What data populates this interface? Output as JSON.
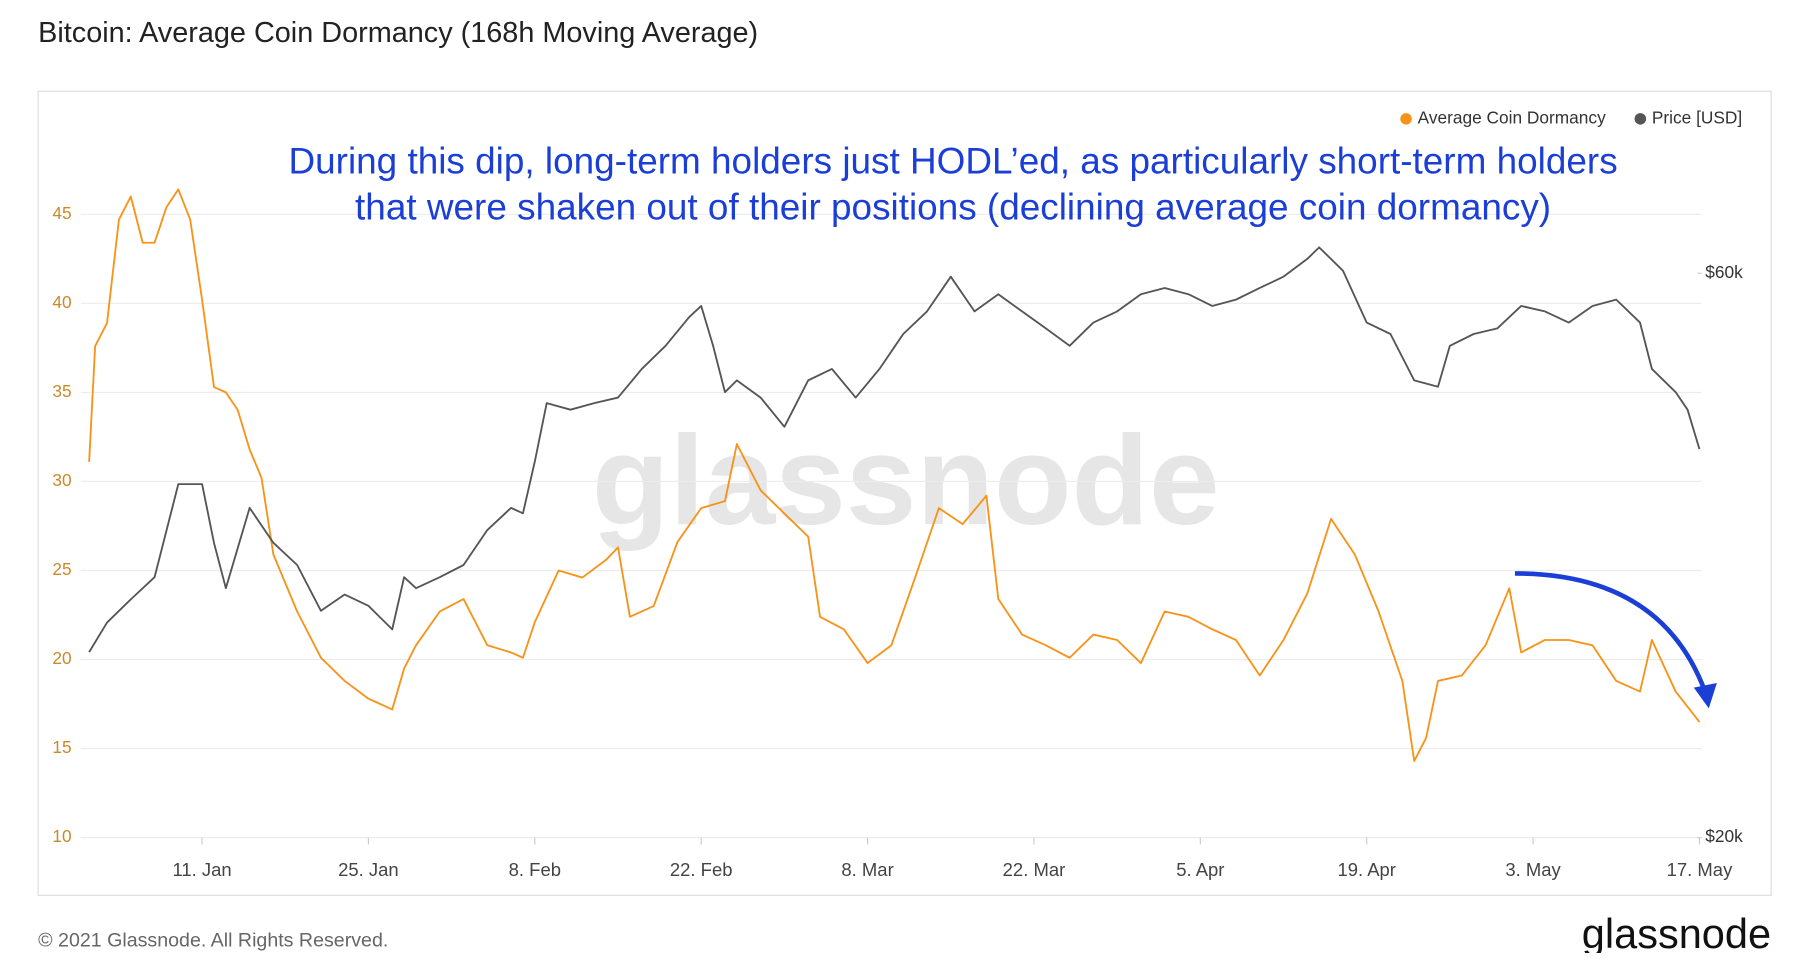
{
  "chart_data": {
    "type": "line",
    "title": "Bitcoin: Average Coin Dormancy (168h Moving Average)",
    "annotation": [
      "During this dip, long-term holders just HODL’ed, as particularly short-term holders",
      "that were shaken out of their positions (declining average coin dormancy)"
    ],
    "watermark": "glassnode",
    "footer": "© 2021 Glassnode. All Rights Reserved.",
    "logo": "glassnode",
    "legend": "top-right",
    "grid": true,
    "xlim": [
      0.8,
      137.2
    ],
    "xticks": [
      {
        "value": 11,
        "label": "11. Jan"
      },
      {
        "value": 25,
        "label": "25. Jan"
      },
      {
        "value": 39,
        "label": "8. Feb"
      },
      {
        "value": 53,
        "label": "22. Feb"
      },
      {
        "value": 67,
        "label": "8. Mar"
      },
      {
        "value": 81,
        "label": "22. Mar"
      },
      {
        "value": 95,
        "label": "5. Apr"
      },
      {
        "value": 109,
        "label": "19. Apr"
      },
      {
        "value": 123,
        "label": "3. May"
      },
      {
        "value": 137,
        "label": "17. May"
      }
    ],
    "ylim": [
      10,
      49
    ],
    "yticks": [
      10,
      15,
      20,
      25,
      30,
      35,
      40,
      45
    ],
    "y2lim": [
      20000,
      77300
    ],
    "y2log": true,
    "y2ticks": [
      {
        "value": 20000,
        "label": "$20k"
      },
      {
        "value": 60000,
        "label": "$60k"
      }
    ],
    "series": [
      {
        "name": "Average Coin Dormancy",
        "color": "#f7931a",
        "x": [
          1.5,
          2,
          3,
          4,
          5,
          6,
          7,
          8,
          9,
          10,
          11,
          12,
          13,
          14,
          15,
          16,
          17,
          19,
          21,
          23,
          25,
          27,
          28,
          29,
          31,
          33,
          35,
          37,
          38,
          39,
          41,
          43,
          45,
          46,
          47,
          49,
          51,
          53,
          55,
          56,
          58,
          60,
          62,
          63,
          65,
          67,
          69,
          71,
          73,
          75,
          77,
          78,
          80,
          82,
          84,
          86,
          88,
          90,
          92,
          94,
          96,
          98,
          100,
          102,
          104,
          106,
          108,
          110,
          112,
          113,
          114,
          115,
          117,
          119,
          121,
          122,
          124,
          126,
          128,
          130,
          132,
          133,
          135,
          137
        ],
        "values": [
          31.1,
          37.6,
          38.9,
          44.7,
          46.0,
          43.4,
          43.4,
          45.4,
          46.4,
          44.7,
          40.2,
          35.3,
          35.0,
          34.0,
          31.8,
          30.2,
          25.9,
          22.7,
          20.1,
          18.8,
          17.8,
          17.2,
          19.5,
          20.8,
          22.7,
          23.4,
          20.8,
          20.4,
          20.1,
          22.1,
          25.0,
          24.6,
          25.6,
          26.3,
          22.4,
          23.0,
          26.6,
          28.5,
          28.9,
          32.1,
          29.5,
          28.2,
          26.9,
          22.4,
          21.7,
          19.8,
          20.8,
          24.6,
          28.5,
          27.6,
          29.2,
          23.4,
          21.4,
          20.8,
          20.1,
          21.4,
          21.1,
          19.8,
          22.7,
          22.4,
          21.7,
          21.1,
          19.1,
          21.1,
          23.7,
          27.9,
          25.9,
          22.7,
          18.8,
          14.3,
          15.6,
          18.8,
          19.1,
          20.8,
          24.0,
          20.4,
          21.1,
          21.1,
          20.8,
          18.8,
          18.2,
          21.1,
          18.2,
          16.5
        ]
      },
      {
        "name": "Price [USD]",
        "color": "#555555",
        "axis": "y2",
        "x": [
          1.5,
          3,
          5,
          7,
          9,
          11,
          12,
          13,
          15,
          17,
          19,
          21,
          23,
          25,
          27,
          28,
          29,
          31,
          33,
          35,
          37,
          38,
          39,
          40,
          42,
          44,
          46,
          48,
          50,
          52,
          53,
          54,
          55,
          56,
          58,
          60,
          62,
          64,
          66,
          68,
          70,
          72,
          74,
          76,
          78,
          80,
          82,
          84,
          86,
          88,
          90,
          92,
          94,
          96,
          98,
          100,
          102,
          104,
          105,
          107,
          109,
          111,
          113,
          115,
          116,
          118,
          120,
          122,
          124,
          126,
          128,
          130,
          132,
          133,
          135,
          136,
          137
        ],
        "values": [
          28700,
          30400,
          31800,
          33200,
          39800,
          39800,
          35500,
          32500,
          38000,
          35500,
          34000,
          31100,
          32100,
          31400,
          30000,
          33200,
          32500,
          33200,
          34000,
          36400,
          38000,
          37600,
          41600,
          46600,
          46000,
          46600,
          47100,
          49800,
          52100,
          55100,
          56300,
          52100,
          47600,
          48700,
          47100,
          44500,
          48700,
          49800,
          47100,
          49800,
          53300,
          55700,
          59600,
          55700,
          57600,
          55700,
          53900,
          52100,
          54500,
          55700,
          57600,
          58300,
          57600,
          56300,
          57000,
          58300,
          59600,
          61700,
          63100,
          60300,
          54500,
          53300,
          48700,
          48100,
          52100,
          53300,
          53900,
          56300,
          55700,
          54500,
          56300,
          57000,
          54500,
          49800,
          47600,
          46000,
          42600
        ]
      }
    ]
  }
}
